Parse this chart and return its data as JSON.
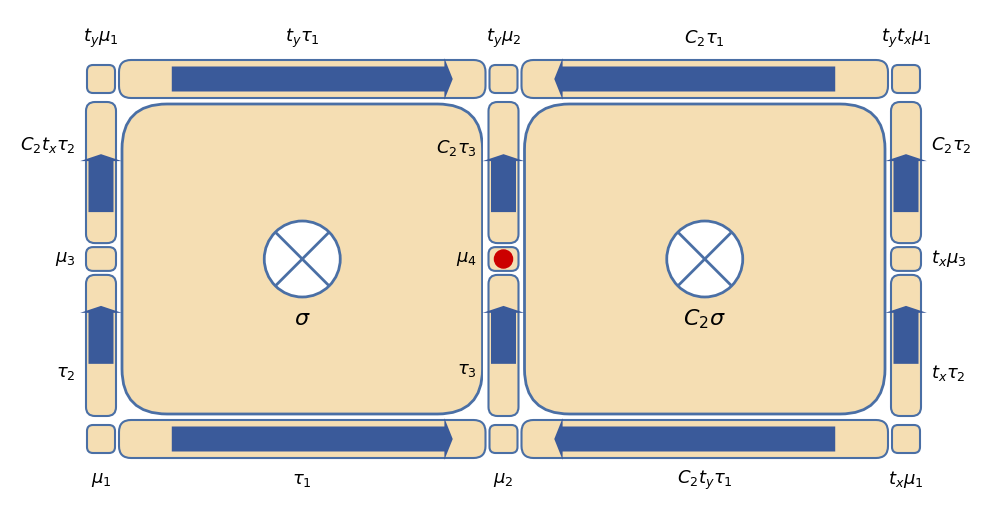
{
  "fig_width": 10.07,
  "fig_height": 5.18,
  "bg_color": "#ffffff",
  "cell_fill": "#F5DEB3",
  "cell_edge": "#4A6FA5",
  "arrow_color": "#3A5A9A",
  "red_dot_color": "#CC0000",
  "label_fontsize": 13,
  "labels": {
    "top_left": "$t_y\\mu_1$",
    "top_mid_left": "$t_y\\tau_1$",
    "top_mid": "$t_y\\mu_2$",
    "top_mid_right": "$C_2\\tau_1$",
    "top_right": "$t_y t_x\\mu_1$",
    "left_top": "$C_2 t_x\\tau_2$",
    "left_mid": "$\\mu_3$",
    "left_bot": "$\\tau_2$",
    "inner_left_top": "$C_2\\tau_3$",
    "inner_left_mid": "$\\mu_4$",
    "inner_left_bot": "$\\tau_3$",
    "right_top": "$C_2\\tau_2$",
    "right_mid": "$t_x\\mu_3$",
    "right_bot": "$t_x\\tau_2$",
    "bot_left": "$\\mu_1$",
    "bot_mid_left": "$\\tau_1$",
    "bot_mid": "$\\mu_2$",
    "bot_mid_right": "$C_2 t_y\\tau_1$",
    "bot_right": "$t_x\\mu_1$",
    "sigma": "$\\sigma$",
    "C2sigma": "$C_2\\sigma$"
  }
}
